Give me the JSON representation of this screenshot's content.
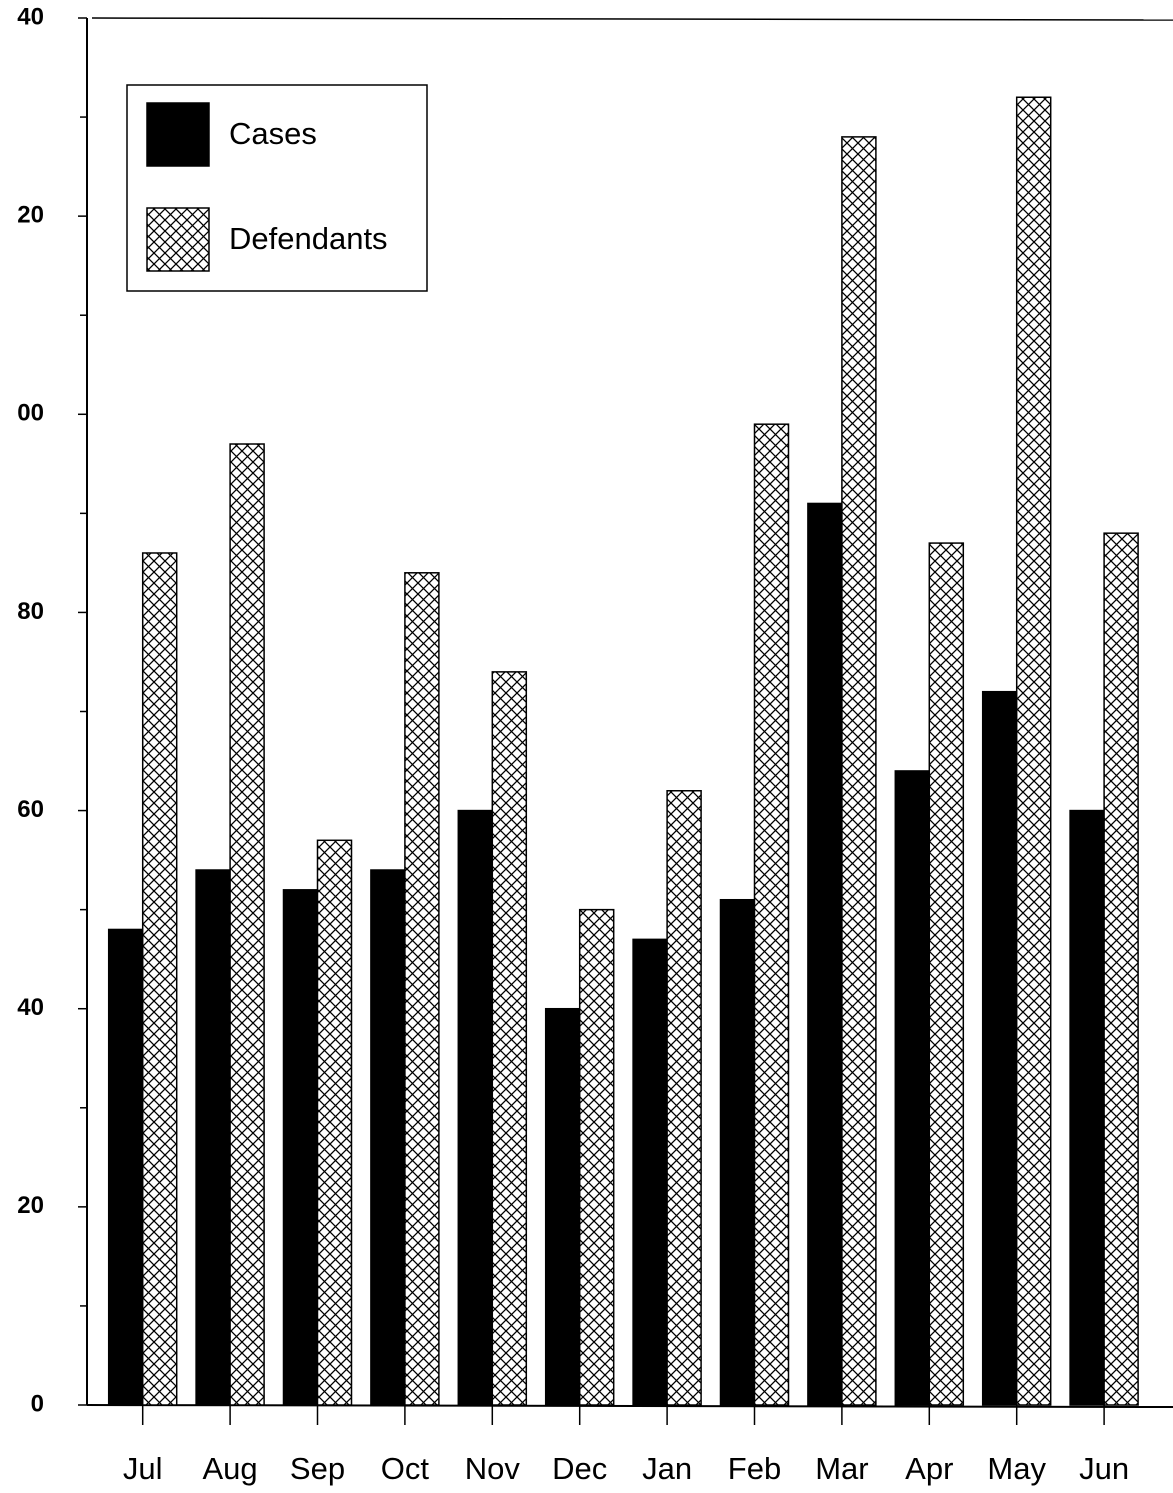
{
  "chart_data": {
    "type": "bar",
    "categories": [
      "Jul",
      "Aug",
      "Sep",
      "Oct",
      "Nov",
      "Dec",
      "Jan",
      "Feb",
      "Mar",
      "Apr",
      "May",
      "Jun"
    ],
    "series": [
      {
        "name": "Cases",
        "color": "#000000",
        "pattern": "solid",
        "values": [
          48,
          54,
          52,
          54,
          60,
          40,
          47,
          51,
          91,
          64,
          72,
          60
        ]
      },
      {
        "name": "Defendants",
        "color": "#000000",
        "pattern": "crosshatch",
        "values": [
          86,
          97,
          57,
          84,
          74,
          50,
          62,
          99,
          128,
          87,
          132,
          88
        ]
      }
    ],
    "ylim": [
      0,
      140
    ],
    "yticks": [
      0,
      20,
      40,
      60,
      80,
      {
        "value": 100,
        "label": "00"
      },
      {
        "value": 120,
        "label": "20"
      },
      {
        "value": 140,
        "label": "40"
      }
    ],
    "yminorticks": [
      10,
      30,
      50,
      70,
      90,
      110,
      130
    ],
    "legend": "top-left"
  }
}
